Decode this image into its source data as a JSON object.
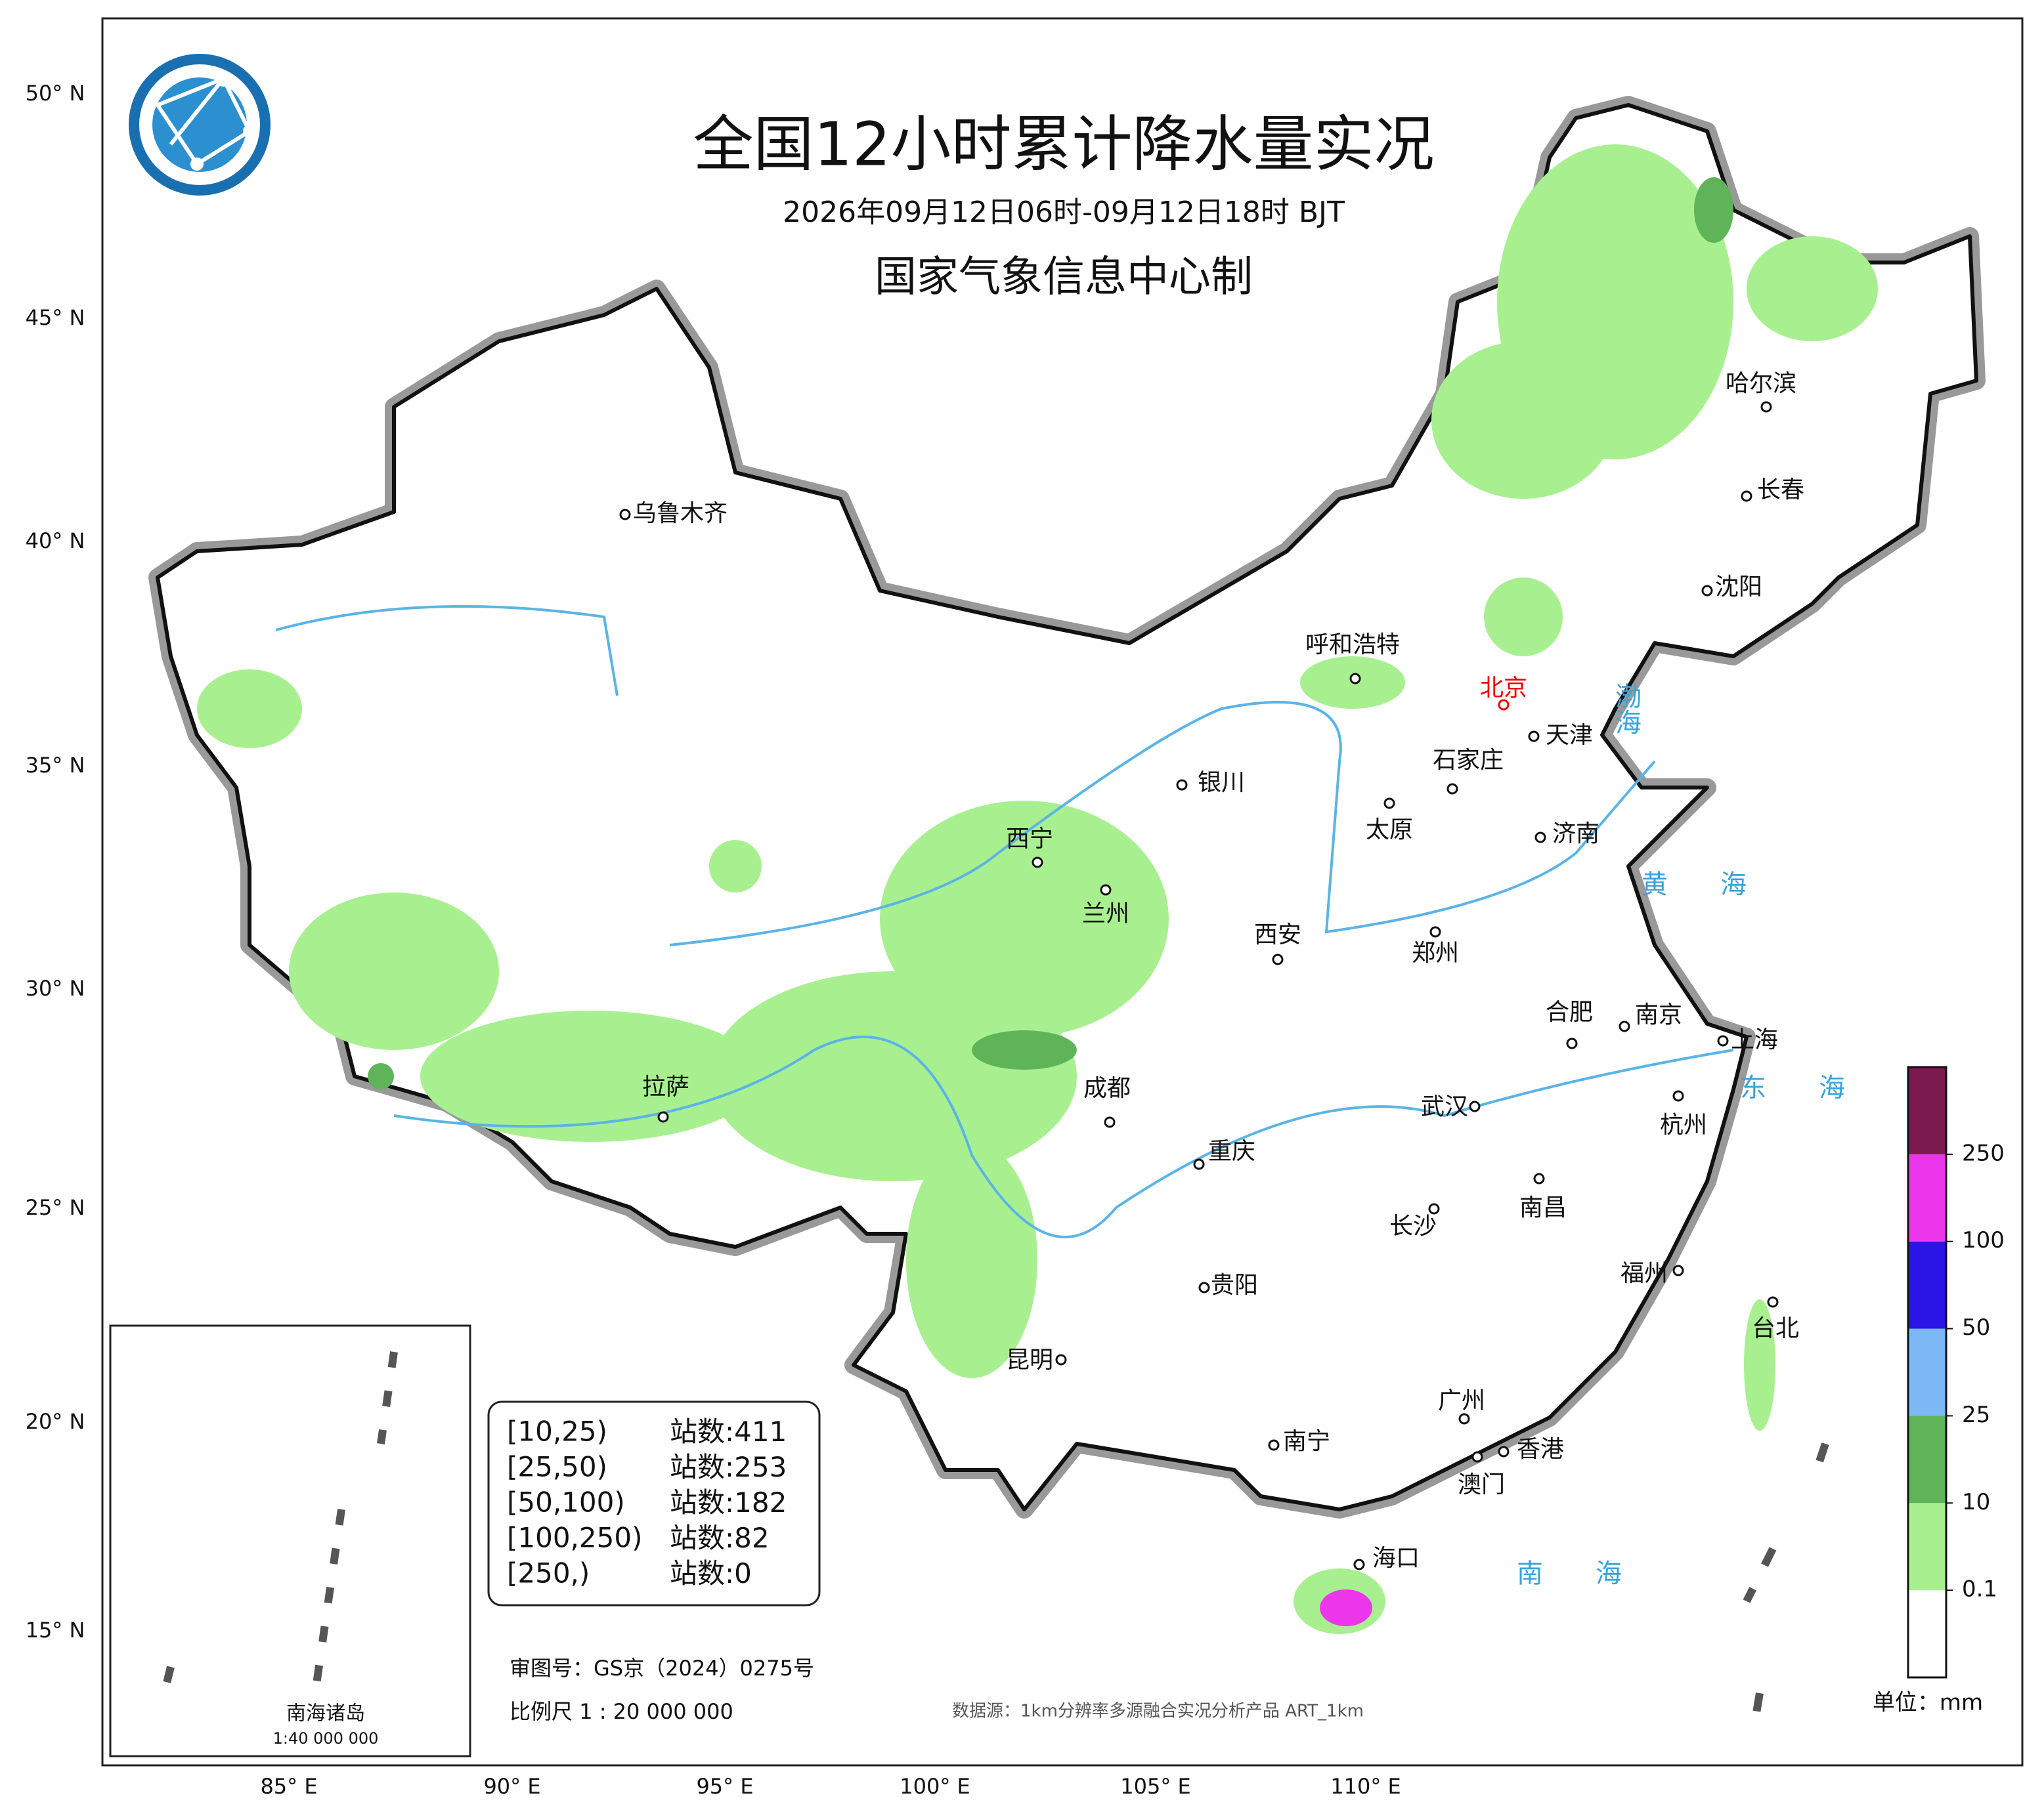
{
  "header": {
    "title": "全国12小时累计降水量实况",
    "subtitle": "2026年09月12日06时-09月12日18时 BJT",
    "producer": "国家气象信息中心制"
  },
  "lat_labels": [
    "50° N",
    "45° N",
    "40° N",
    "35° N",
    "30° N",
    "25° N",
    "20° N",
    "15° N"
  ],
  "lon_labels": [
    "85° E",
    "90° E",
    "95° E",
    "100° E",
    "105° E",
    "110° E"
  ],
  "cities": [
    "乌鲁木齐",
    "呼和浩特",
    "北京",
    "天津",
    "石家庄",
    "太原",
    "银川",
    "西宁",
    "兰州",
    "西安",
    "郑州",
    "济南",
    "沈阳",
    "长春",
    "哈尔滨",
    "合肥",
    "南京",
    "上海",
    "杭州",
    "武汉",
    "成都",
    "重庆",
    "拉萨",
    "长沙",
    "南昌",
    "福州",
    "贵阳",
    "昆明",
    "台北",
    "南宁",
    "广州",
    "香港",
    "澳门",
    "海口"
  ],
  "seas": [
    "渤海",
    "黄海",
    "东海",
    "南海"
  ],
  "stats": {
    "station_label": "站数:",
    "rows": [
      {
        "range": "[10,25)",
        "count": 411
      },
      {
        "range": "[25,50)",
        "count": 253
      },
      {
        "range": "[50,100)",
        "count": 182
      },
      {
        "range": "[100,250)",
        "count": 82
      },
      {
        "range": "[250,)",
        "count": 0
      }
    ]
  },
  "legend": {
    "levels": [
      0.1,
      10,
      25,
      50,
      100,
      250
    ],
    "colors": [
      "#ffffff",
      "#a8f08f",
      "#5fb45a",
      "#7bb8f5",
      "#2a14e6",
      "#ec36ec",
      "#7a1a4e"
    ],
    "unit": "单位：mm"
  },
  "footer": {
    "approval": "审图号：GS京（2024）0275号",
    "scale": "比例尺 1 : 20 000 000",
    "source": "数据源：1km分辨率多源融合实况分析产品 ART_1km"
  },
  "inset": {
    "title": "南海诸岛",
    "scale": "1:40 000 000"
  }
}
